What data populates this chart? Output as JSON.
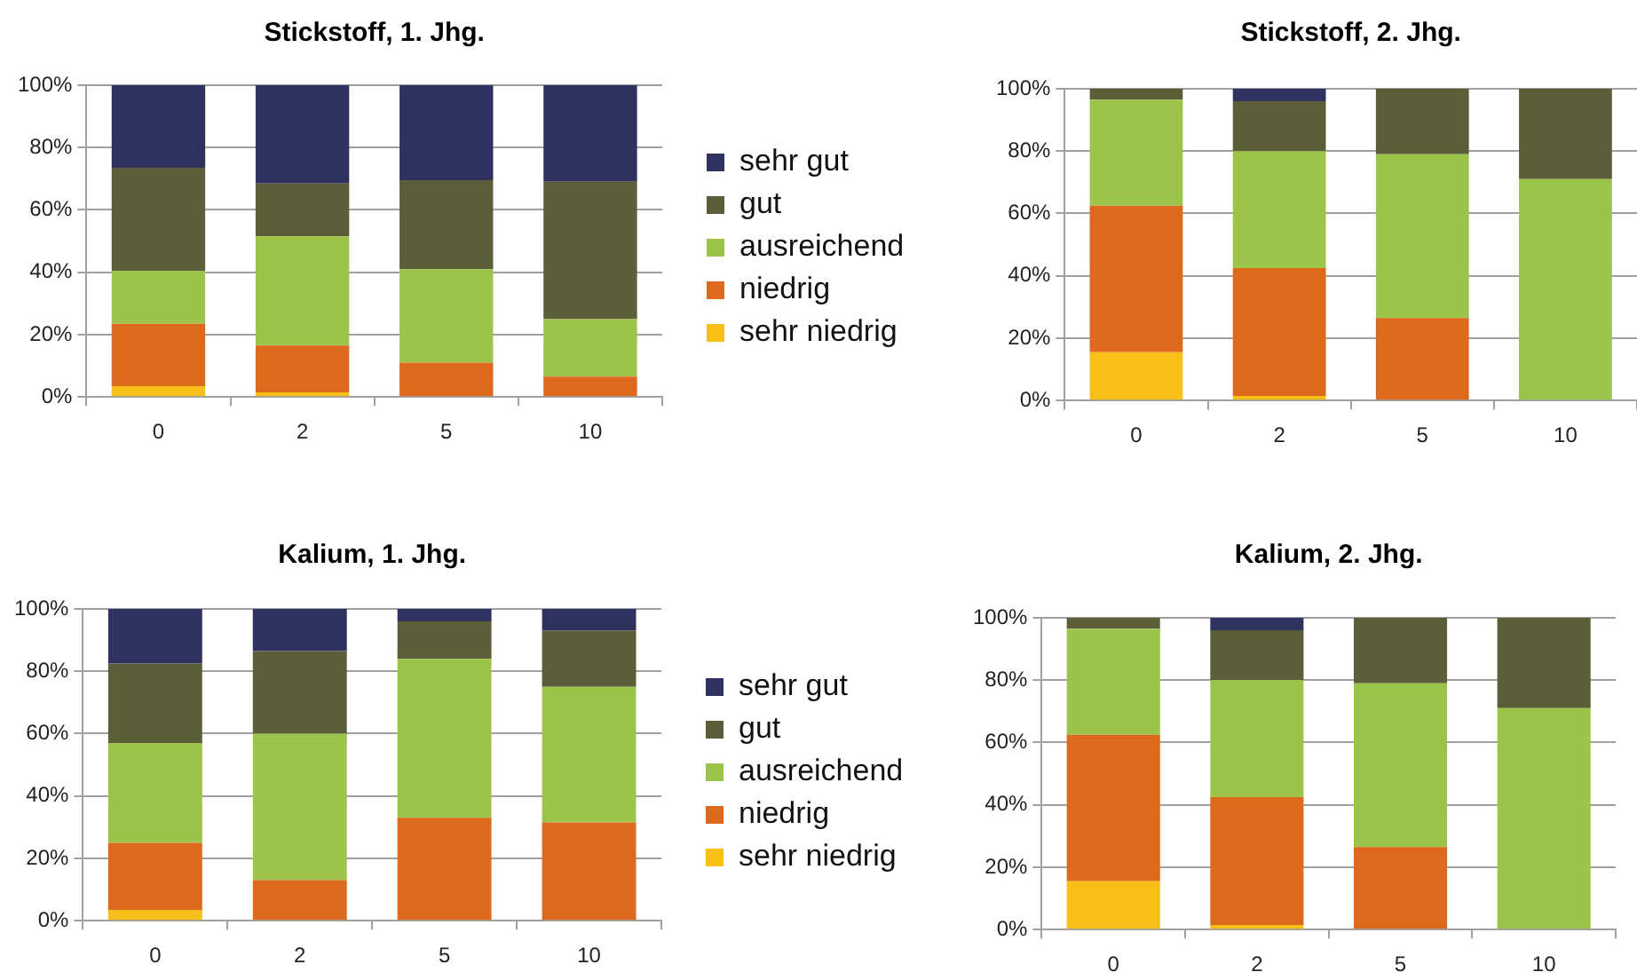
{
  "chart_data": [
    {
      "type": "bar",
      "stacked": true,
      "title": "Stickstoff, 1. Jhg.",
      "categories": [
        "0",
        "2",
        "5",
        "10"
      ],
      "series": [
        {
          "name": "sehr niedrig",
          "color": "#f7bf18",
          "values": [
            3.5,
            1.5,
            0,
            0
          ]
        },
        {
          "name": "niedrig",
          "color": "#dd691d",
          "values": [
            20,
            15,
            11,
            6.5
          ]
        },
        {
          "name": "ausreichend",
          "color": "#9dc44a",
          "values": [
            17,
            35,
            30,
            18.5
          ]
        },
        {
          "name": "gut",
          "color": "#5b5e38",
          "values": [
            33,
            17,
            28.5,
            44
          ]
        },
        {
          "name": "sehr gut",
          "color": "#2f325e",
          "values": [
            26.5,
            31.5,
            30.5,
            31
          ]
        }
      ],
      "ylim": [
        0,
        100
      ],
      "yticks": [
        {
          "value": 0,
          "label": "0%"
        },
        {
          "value": 20,
          "label": "20%"
        },
        {
          "value": 40,
          "label": "40%"
        },
        {
          "value": 60,
          "label": "60%"
        },
        {
          "value": 80,
          "label": "80%"
        },
        {
          "value": 100,
          "label": "100%"
        }
      ],
      "grid": "y",
      "legend": "right"
    },
    {
      "type": "bar",
      "stacked": true,
      "title": "Stickstoff, 2. Jhg.",
      "categories": [
        "0",
        "2",
        "5",
        "10"
      ],
      "series": [
        {
          "color": "#f7bf18",
          "values": [
            15.5,
            1.5,
            0,
            0
          ]
        },
        {
          "color": "#dd691d",
          "values": [
            47,
            41,
            26.5,
            0
          ]
        },
        {
          "color": "#9dc44a",
          "values": [
            34,
            37.5,
            52.5,
            71
          ]
        },
        {
          "color": "#5b5e38",
          "values": [
            3.5,
            16,
            21,
            29
          ]
        },
        {
          "color": "#2f325e",
          "values": [
            0,
            4,
            0,
            0
          ]
        }
      ],
      "ylim": [
        0,
        100
      ],
      "yticks": [
        {
          "value": 0,
          "label": "0%"
        },
        {
          "value": 20,
          "label": "20%"
        },
        {
          "value": 40,
          "label": "40%"
        },
        {
          "value": 60,
          "label": "60%"
        },
        {
          "value": 80,
          "label": "80%"
        },
        {
          "value": 100,
          "label": "100%"
        }
      ],
      "grid": "y"
    },
    {
      "type": "bar",
      "stacked": true,
      "title": "Kalium, 1. Jhg.",
      "categories": [
        "0",
        "2",
        "5",
        "10"
      ],
      "series": [
        {
          "name": "sehr niedrig",
          "color": "#f7bf18",
          "values": [
            3.5,
            0,
            0,
            0
          ]
        },
        {
          "name": "niedrig",
          "color": "#dd691d",
          "values": [
            21.5,
            13,
            33,
            31.5
          ]
        },
        {
          "name": "ausreichend",
          "color": "#9dc44a",
          "values": [
            32,
            47,
            51,
            43.5
          ]
        },
        {
          "name": "gut",
          "color": "#5b5e38",
          "values": [
            25.5,
            26.5,
            12,
            18
          ]
        },
        {
          "name": "sehr gut",
          "color": "#2f325e",
          "values": [
            17.5,
            13.5,
            4,
            7
          ]
        }
      ],
      "ylim": [
        0,
        100
      ],
      "yticks": [
        {
          "value": 0,
          "label": "0%"
        },
        {
          "value": 20,
          "label": "20%"
        },
        {
          "value": 40,
          "label": "40%"
        },
        {
          "value": 60,
          "label": "60%"
        },
        {
          "value": 80,
          "label": "80%"
        },
        {
          "value": 100,
          "label": "100%"
        }
      ],
      "grid": "y",
      "legend": "right"
    },
    {
      "type": "bar",
      "stacked": true,
      "title": "Kalium, 2. Jhg.",
      "categories": [
        "0",
        "2",
        "5",
        "10"
      ],
      "series": [
        {
          "color": "#f7bf18",
          "values": [
            15.5,
            1.5,
            0,
            0
          ]
        },
        {
          "color": "#dd691d",
          "values": [
            47,
            41,
            26.5,
            0
          ]
        },
        {
          "color": "#9dc44a",
          "values": [
            34,
            37.5,
            52.5,
            71
          ]
        },
        {
          "color": "#5b5e38",
          "values": [
            3.5,
            16,
            21,
            29
          ]
        },
        {
          "color": "#2f325e",
          "values": [
            0,
            4,
            0,
            0
          ]
        }
      ],
      "ylim": [
        0,
        100
      ],
      "yticks": [
        {
          "value": 0,
          "label": "0%"
        },
        {
          "value": 20,
          "label": "20%"
        },
        {
          "value": 40,
          "label": "40%"
        },
        {
          "value": 60,
          "label": "60%"
        },
        {
          "value": 80,
          "label": "80%"
        },
        {
          "value": 100,
          "label": "100%"
        }
      ],
      "grid": "y"
    }
  ]
}
